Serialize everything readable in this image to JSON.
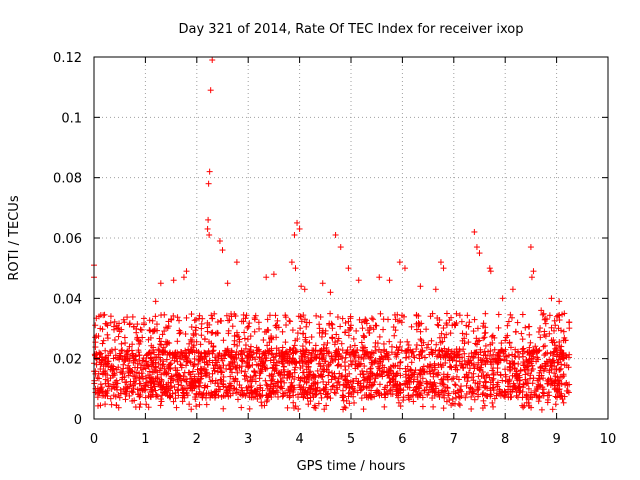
{
  "chart_data": {
    "type": "scatter",
    "title": "Day 321 of 2014, Rate Of TEC Index for receiver ixop",
    "xlabel": "GPS time / hours",
    "ylabel": "ROTI / TECUs",
    "xlim": [
      0,
      10
    ],
    "ylim": [
      0,
      0.12
    ],
    "xticks": [
      "0",
      "1",
      "2",
      "3",
      "4",
      "5",
      "6",
      "7",
      "8",
      "9",
      "10"
    ],
    "yticks": [
      "0",
      "0.02",
      "0.04",
      "0.06",
      "0.08",
      "0.1",
      "0.12"
    ],
    "grid": true,
    "marker": "+",
    "color": "#ff0000",
    "series": [
      {
        "name": "ROTI",
        "points": [
          [
            0.0,
            0.051
          ],
          [
            0.0,
            0.047
          ],
          [
            0.02,
            0.021
          ],
          [
            0.05,
            0.018
          ],
          [
            0.1,
            0.022
          ],
          [
            2.3,
            0.119
          ],
          [
            2.27,
            0.109
          ],
          [
            2.25,
            0.082
          ],
          [
            2.23,
            0.078
          ],
          [
            2.22,
            0.066
          ],
          [
            2.21,
            0.063
          ],
          [
            2.24,
            0.061
          ],
          [
            2.45,
            0.059
          ],
          [
            2.5,
            0.056
          ],
          [
            2.78,
            0.052
          ],
          [
            3.95,
            0.065
          ],
          [
            4.0,
            0.063
          ],
          [
            3.9,
            0.061
          ],
          [
            3.85,
            0.052
          ],
          [
            3.92,
            0.05
          ],
          [
            4.03,
            0.044
          ],
          [
            4.1,
            0.043
          ],
          [
            4.7,
            0.061
          ],
          [
            4.8,
            0.057
          ],
          [
            4.95,
            0.05
          ],
          [
            5.15,
            0.046
          ],
          [
            5.55,
            0.047
          ],
          [
            5.95,
            0.052
          ],
          [
            6.05,
            0.05
          ],
          [
            6.75,
            0.052
          ],
          [
            6.8,
            0.05
          ],
          [
            7.4,
            0.062
          ],
          [
            7.45,
            0.057
          ],
          [
            7.5,
            0.055
          ],
          [
            7.7,
            0.05
          ],
          [
            7.72,
            0.049
          ],
          [
            8.5,
            0.057
          ],
          [
            8.55,
            0.049
          ],
          [
            8.52,
            0.047
          ],
          [
            8.9,
            0.04
          ],
          [
            9.05,
            0.039
          ],
          [
            9.15,
            0.035
          ],
          [
            1.8,
            0.049
          ],
          [
            1.75,
            0.047
          ],
          [
            1.3,
            0.045
          ],
          [
            1.55,
            0.046
          ],
          [
            3.35,
            0.047
          ],
          [
            3.5,
            0.048
          ],
          [
            2.6,
            0.045
          ],
          [
            5.75,
            0.046
          ],
          [
            6.65,
            0.043
          ],
          [
            8.15,
            0.043
          ],
          [
            1.2,
            0.039
          ],
          [
            0.45,
            0.03
          ],
          [
            0.6,
            0.027
          ],
          [
            4.45,
            0.045
          ],
          [
            4.6,
            0.042
          ],
          [
            6.35,
            0.044
          ],
          [
            7.95,
            0.04
          ],
          [
            8.7,
            0.036
          ]
        ],
        "bulk_range_note": "Dense band of points between 0.005 and 0.035 TECUs from 0 to 9.25 hours"
      }
    ]
  }
}
